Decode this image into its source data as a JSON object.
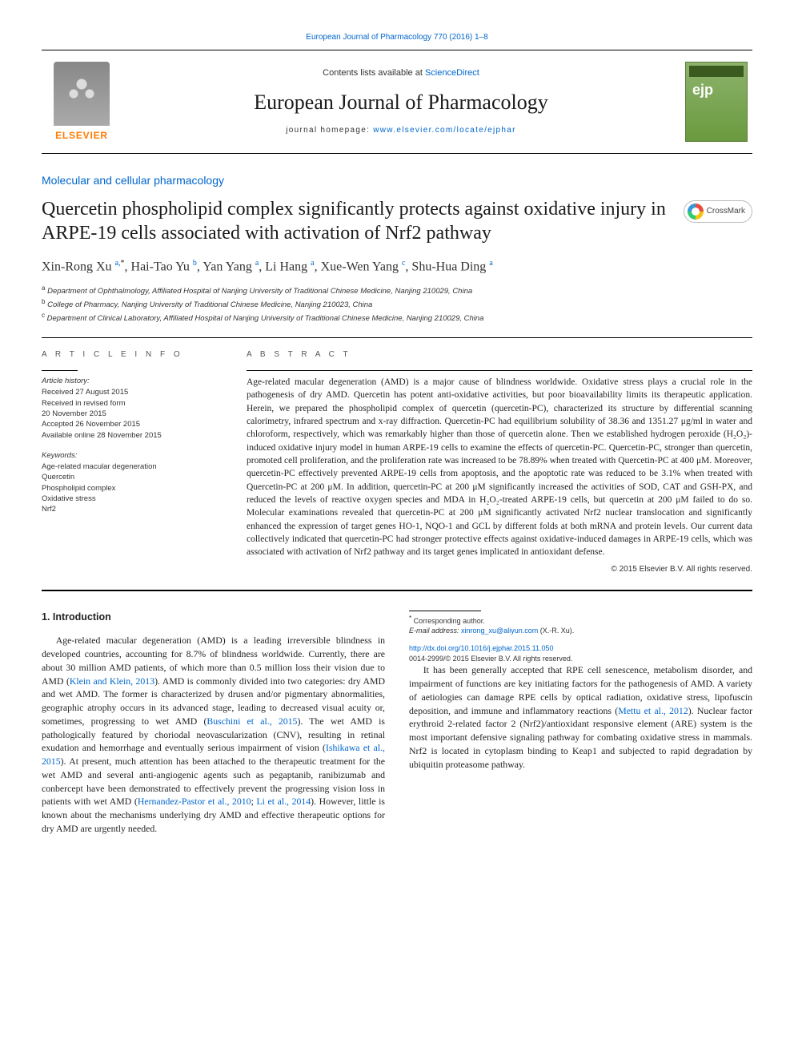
{
  "top_link": {
    "journal": "European Journal of Pharmacology",
    "citation": "770 (2016) 1–8"
  },
  "masthead": {
    "elsevier": "ELSEVIER",
    "contents_prefix": "Contents lists available at ",
    "contents_link": "ScienceDirect",
    "journal_name": "European Journal of Pharmacology",
    "homepage_prefix": "journal homepage: ",
    "homepage_url": "www.elsevier.com/locate/ejphar"
  },
  "section_label": "Molecular and cellular pharmacology",
  "article_title": "Quercetin phospholipid complex significantly protects against oxidative injury in ARPE-19 cells associated with activation of Nrf2 pathway",
  "crossmark_label": "CrossMark",
  "authors_html": "Xin-Rong Xu <span class='sup'>a,</span><span class='sup star'>*</span>, Hai-Tao Yu <span class='sup'>b</span>, Yan Yang <span class='sup'>a</span>, Li Hang <span class='sup'>a</span>, Xue-Wen Yang <span class='sup'>c</span>, Shu-Hua Ding <span class='sup'>a</span>",
  "affiliations": {
    "a": "Department of Ophthalmology, Affiliated Hospital of Nanjing University of Traditional Chinese Medicine, Nanjing 210029, China",
    "b": "College of Pharmacy, Nanjing University of Traditional Chinese Medicine, Nanjing 210023, China",
    "c": "Department of Clinical Laboratory, Affiliated Hospital of Nanjing University of Traditional Chinese Medicine, Nanjing 210029, China"
  },
  "info": {
    "head": "A R T I C L E  I N F O",
    "history_head": "Article history:",
    "history": [
      "Received 27 August 2015",
      "Received in revised form",
      "20 November 2015",
      "Accepted 26 November 2015",
      "Available online 28 November 2015"
    ],
    "keywords_head": "Keywords:",
    "keywords": [
      "Age-related macular degeneration",
      "Quercetin",
      "Phospholipid complex",
      "Oxidative stress",
      "Nrf2"
    ]
  },
  "abstract": {
    "head": "A B S T R A C T",
    "text": "Age-related macular degeneration (AMD) is a major cause of blindness worldwide. Oxidative stress plays a crucial role in the pathogenesis of dry AMD. Quercetin has potent anti-oxidative activities, but poor bioavailability limits its therapeutic application. Herein, we prepared the phospholipid complex of quercetin (quercetin-PC), characterized its structure by differential scanning calorimetry, infrared spectrum and x-ray diffraction. Quercetin-PC had equilibrium solubility of 38.36 and 1351.27 μg/ml in water and chloroform, respectively, which was remarkably higher than those of quercetin alone. Then we established hydrogen peroxide (H₂O₂)-induced oxidative injury model in human ARPE-19 cells to examine the effects of quercetin-PC. Quercetin-PC, stronger than quercetin, promoted cell proliferation, and the proliferation rate was increased to be 78.89% when treated with Quercetin-PC at 400 μM. Moreover, quercetin-PC effectively prevented ARPE-19 cells from apoptosis, and the apoptotic rate was reduced to be 3.1% when treated with Quercetin-PC at 200 μM. In addition, quercetin-PC at 200 μM significantly increased the activities of SOD, CAT and GSH-PX, and reduced the levels of reactive oxygen species and MDA in H₂O₂-treated ARPE-19 cells, but quercetin at 200 μM failed to do so. Molecular examinations revealed that quercetin-PC at 200 μM significantly activated Nrf2 nuclear translocation and significantly enhanced the expression of target genes HO-1, NQO-1 and GCL by different folds at both mRNA and protein levels. Our current data collectively indicated that quercetin-PC had stronger protective effects against oxidative-induced damages in ARPE-19 cells, which was associated with activation of Nrf2 pathway and its target genes implicated in antioxidant defense.",
    "copyright": "© 2015 Elsevier B.V. All rights reserved."
  },
  "body": {
    "heading": "1. Introduction",
    "p1a": "Age-related macular degeneration (AMD) is a leading irreversible blindness in developed countries, accounting for 8.7% of blindness worldwide. Currently, there are about 30 million AMD patients, of which more than 0.5 million loss their vision due to AMD (",
    "c1": "Klein and Klein, 2013",
    "p1b": "). AMD is commonly divided into two categories: dry AMD and wet AMD. The former is characterized by drusen and/or pigmentary abnormalities, geographic atrophy occurs in its advanced stage, leading to decreased visual acuity or, sometimes, progressing to wet AMD (",
    "c2": "Buschini et al., 2015",
    "p1c": "). The wet AMD is pathologically featured by choriodal neovascularization (CNV), resulting in retinal exudation and hemorrhage and eventually serious impairment of vision (",
    "c3": "Ishikawa et al., 2015",
    "p1d": "). At present, much attention has been attached to the therapeutic treatment for the wet AMD and several anti-angiogenic agents such as pegaptanib, ranibizumab and conbercept have been demonstrated to effectively prevent the progressing vision loss in patients with wet AMD (",
    "c4": "Hernandez-Pastor et al., 2010",
    "semi": "; ",
    "c5": "Li et al., 2014",
    "p1e": "). However, little is known about the mechanisms underlying dry AMD and effective therapeutic options for dry AMD are urgently needed.",
    "p2a": "It has been generally accepted that RPE cell senescence, metabolism disorder, and impairment of functions are key initiating factors for the pathogenesis of AMD. A variety of aetiologies can damage RPE cells by optical radiation, oxidative stress, lipofuscin deposition, and immune and inflammatory reactions (",
    "c6": "Mettu et al., 2012",
    "p2b": "). Nuclear factor erythroid 2-related factor 2 (Nrf2)/antioxidant responsive element (ARE) system is the most important defensive signaling pathway for combating oxidative stress in mammals. Nrf2 is located in cytoplasm binding to Keap1 and subjected to rapid degradation by ubiquitin proteasome pathway."
  },
  "footnote": {
    "corr": "Corresponding author.",
    "email_label": "E-mail address: ",
    "email": "xinrong_xu@aliyun.com",
    "email_suffix": " (X.-R. Xu)."
  },
  "doi": {
    "url": "http://dx.doi.org/10.1016/j.ejphar.2015.11.050",
    "line": "0014-2999/© 2015 Elsevier B.V. All rights reserved."
  },
  "colors": {
    "link": "#0066cc",
    "elsevier_orange": "#ff7a00",
    "text": "#1a1a1a"
  }
}
